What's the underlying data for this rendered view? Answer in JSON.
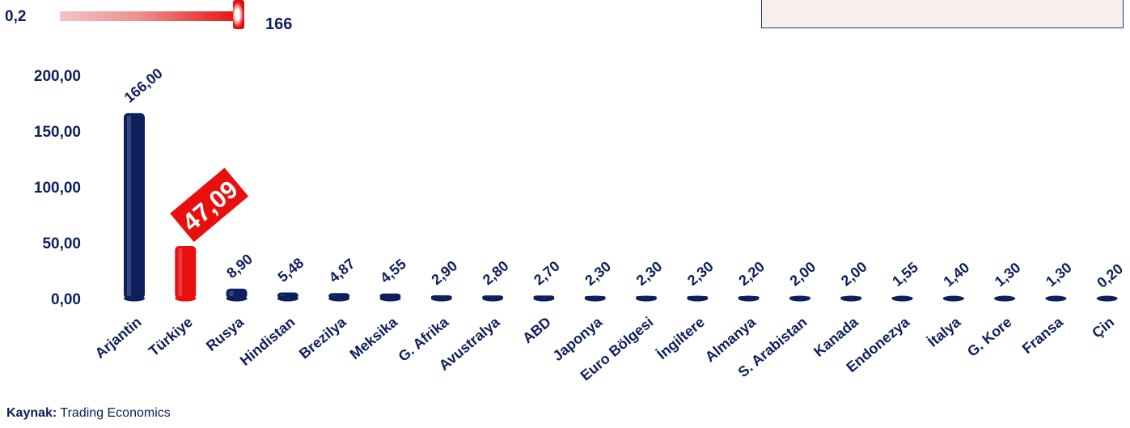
{
  "header": {
    "scale_min_label": "0,2",
    "scale_max_label": "166"
  },
  "source": {
    "label": "Kaynak:",
    "value": "Trading Economics"
  },
  "colors": {
    "navy": "#0d1f5c",
    "highlight": "#e8100f"
  },
  "chart_data": {
    "type": "bar",
    "categories": [
      "Arjantin",
      "Türkiye",
      "Rusya",
      "Hindistan",
      "Brezilya",
      "Meksika",
      "G. Afrika",
      "Avustralya",
      "ABD",
      "Japonya",
      "Euro Bölgesi",
      "İngiltere",
      "Almanya",
      "S. Arabistan",
      "Kanada",
      "Endonezya",
      "İtalya",
      "G. Kore",
      "Fransa",
      "Çin"
    ],
    "values": [
      166.0,
      47.09,
      8.9,
      5.48,
      4.87,
      4.55,
      2.9,
      2.8,
      2.7,
      2.3,
      2.3,
      2.3,
      2.2,
      2.0,
      2.0,
      1.55,
      1.4,
      1.3,
      1.3,
      0.2
    ],
    "value_labels": [
      "166,00",
      "47,09",
      "8,90",
      "5,48",
      "4,87",
      "4,55",
      "2,90",
      "2,80",
      "2,70",
      "2,30",
      "2,30",
      "2,30",
      "2,20",
      "2,00",
      "2,00",
      "1,55",
      "1,40",
      "1,30",
      "1,30",
      "0,20"
    ],
    "highlight_index": 1,
    "yticks": [
      "0,00",
      "50,00",
      "100,00",
      "150,00",
      "200,00"
    ],
    "ytick_values": [
      0,
      50,
      100,
      150,
      200
    ],
    "ylim": [
      0,
      200
    ],
    "grid": false,
    "legend": "none"
  }
}
